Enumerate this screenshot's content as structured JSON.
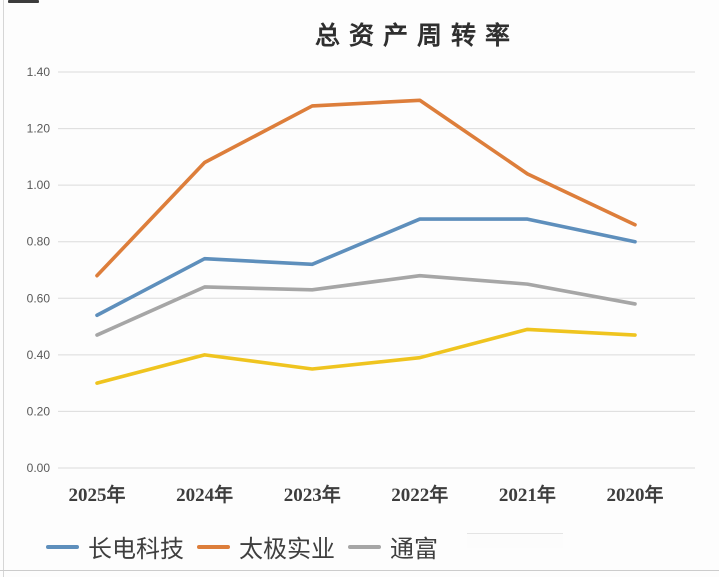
{
  "y_axis": {
    "labels": [
      "1.40",
      "1.20",
      "1.00",
      "0.80",
      "0.60",
      "0.40",
      "0.20",
      "0.00"
    ],
    "text_color": "#595959"
  },
  "x_axis": {
    "text_color": "#3d3d3d"
  },
  "legend": {
    "items": [
      {
        "label": "长电科技",
        "color": "#5E8FBC"
      },
      {
        "label": "太极实业",
        "color": "#DD7E3B"
      },
      {
        "label": "通富",
        "color": "#A6A6A6"
      }
    ]
  },
  "chart_data": {
    "type": "line",
    "title": "总资产周转率",
    "categories": [
      "2025年",
      "2024年",
      "2023年",
      "2022年",
      "2021年",
      "2020年"
    ],
    "series": [
      {
        "name": "长电科技",
        "color": "#5E8FBC",
        "values": [
          0.54,
          0.74,
          0.72,
          0.88,
          0.88,
          0.8
        ],
        "legend_visible": true
      },
      {
        "name": "太极实业",
        "color": "#DD7E3B",
        "values": [
          0.68,
          1.08,
          1.28,
          1.3,
          1.04,
          0.86
        ],
        "legend_visible": true
      },
      {
        "name": "通富",
        "color": "#A6A6A6",
        "values": [
          0.47,
          0.64,
          0.63,
          0.68,
          0.65,
          0.58
        ],
        "legend_visible": true
      },
      {
        "name": "",
        "color": "#EFC41F",
        "values": [
          0.3,
          0.4,
          0.35,
          0.39,
          0.49,
          0.47
        ],
        "legend_visible": false
      }
    ],
    "ylim": [
      0.0,
      1.4
    ],
    "y_tick_step": 0.2,
    "grid": true,
    "gridline_color": "#dbdbdb",
    "legend_position": "bottom-left"
  }
}
